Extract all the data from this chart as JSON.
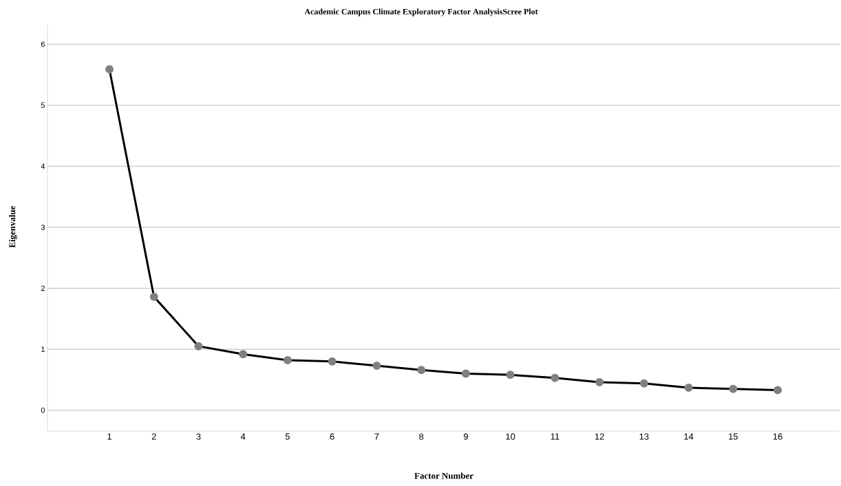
{
  "chart_data": {
    "type": "line",
    "title": "Academic Campus Climate Exploratory Factor AnalysisScree Plot",
    "xlabel": "Factor Number",
    "ylabel": "Eigenvalue",
    "categories": [
      "1",
      "2",
      "3",
      "4",
      "5",
      "6",
      "7",
      "8",
      "9",
      "10",
      "11",
      "12",
      "13",
      "14",
      "15",
      "16"
    ],
    "series": [
      {
        "color": "#000000",
        "values": [
          5.59,
          1.86,
          1.05,
          0.92,
          0.82,
          0.8,
          0.73,
          0.66,
          0.6,
          0.58,
          0.53,
          0.46,
          0.44,
          0.37,
          0.35,
          0.33
        ]
      }
    ],
    "ylim": [
      -0.34,
      6.32
    ],
    "yticks": [
      0,
      1,
      2,
      3,
      4,
      5,
      6
    ],
    "grid": "y",
    "marker": "circle",
    "line_style": "solid"
  }
}
